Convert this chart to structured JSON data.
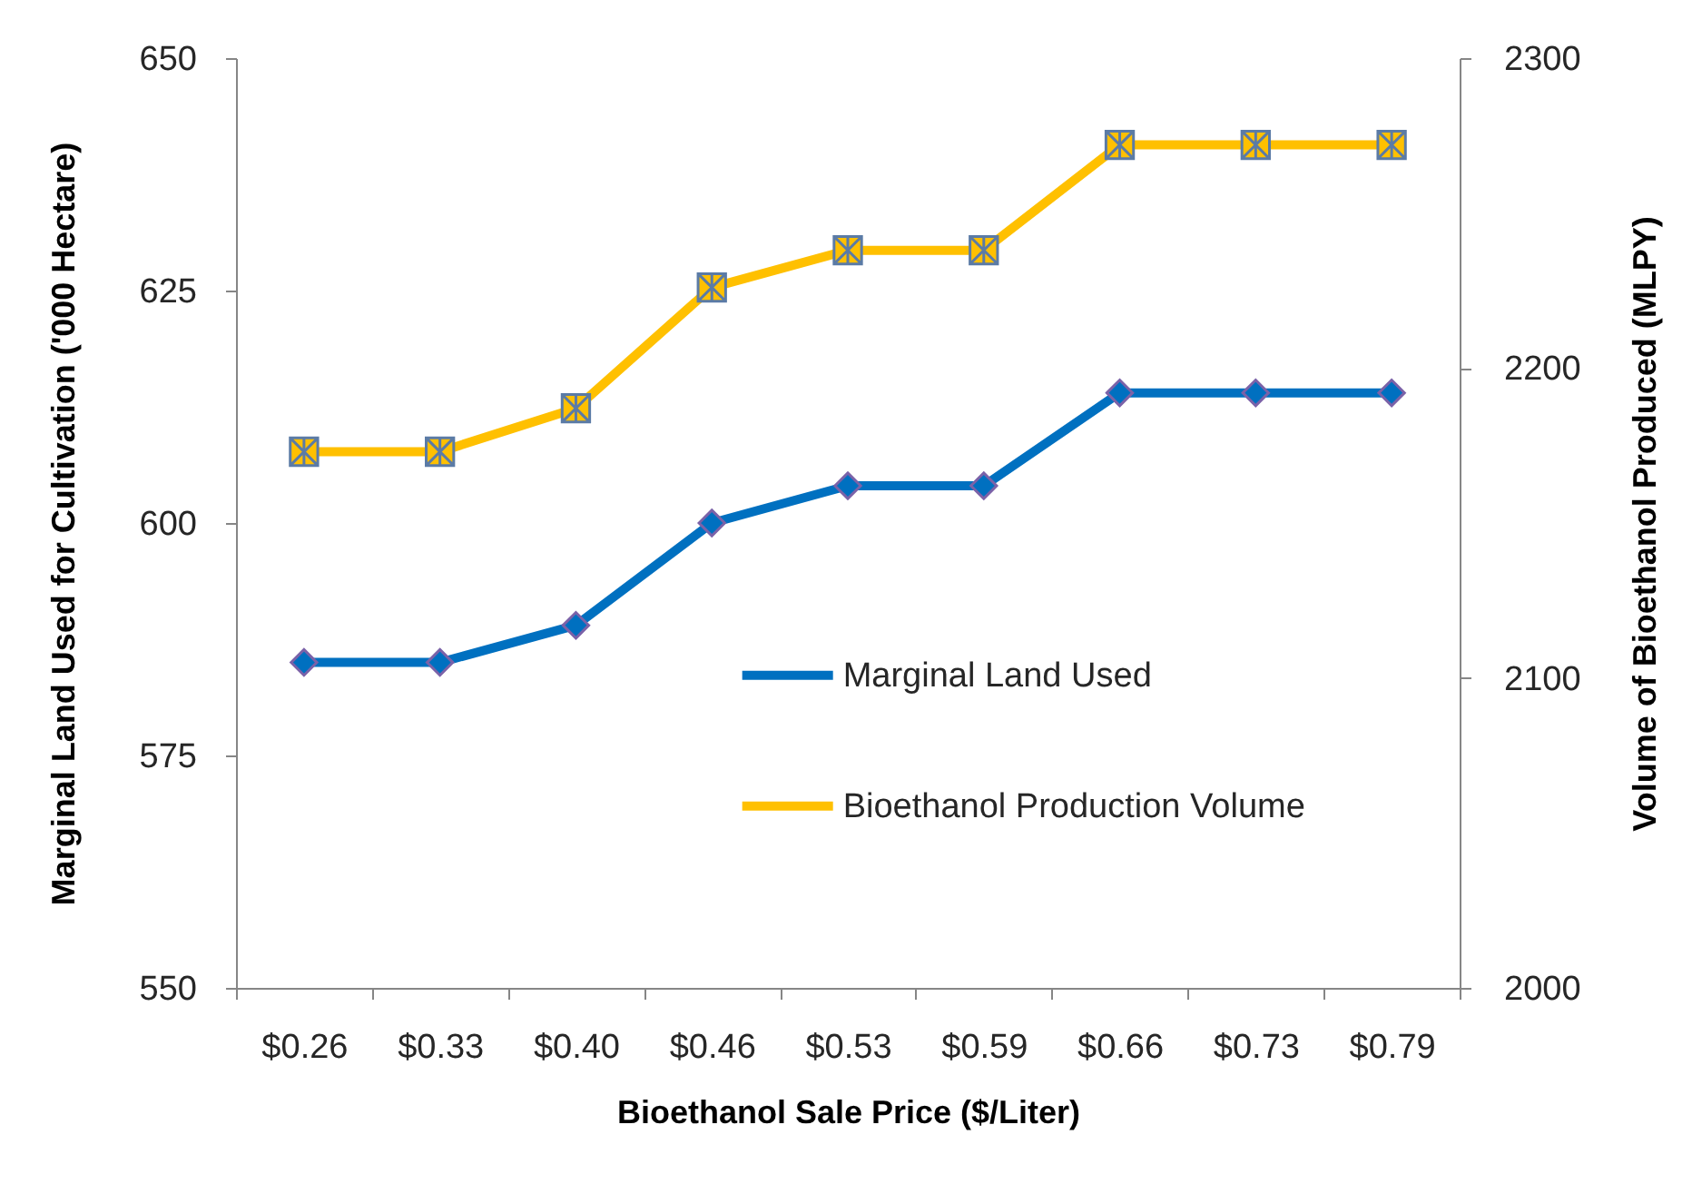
{
  "chart_data": {
    "type": "line",
    "xlabel": "Bioethanol Sale Price ($/Liter)",
    "ylabel": "Marginal Land Used for Cultivation ('000 Hectare)",
    "y2label": "Volume of Bioethanol Produced (MLPY)",
    "categories": [
      "$0.26",
      "$0.33",
      "$0.40",
      "$0.46",
      "$0.53",
      "$0.59",
      "$0.66",
      "$0.73",
      "$0.79"
    ],
    "series": [
      {
        "name": "Marginal Land Used",
        "color": "#0070c0",
        "marker": "diamond",
        "values": [
          585,
          585,
          589,
          600,
          604,
          604,
          614,
          614,
          614
        ]
      },
      {
        "name": "Bioethanol Production Volume",
        "color": "#ffc000",
        "marker": "cross",
        "axis": "y2",
        "values": [
          2173,
          2173,
          2187,
          2226,
          2238,
          2238,
          2272,
          2272,
          2272
        ]
      }
    ],
    "ylim": [
      550,
      650
    ],
    "yticks": [
      550,
      575,
      600,
      625,
      650
    ],
    "y2lim": [
      2000,
      2300
    ],
    "y2ticks": [
      2000,
      2100,
      2200,
      2300
    ],
    "legend": "right"
  }
}
